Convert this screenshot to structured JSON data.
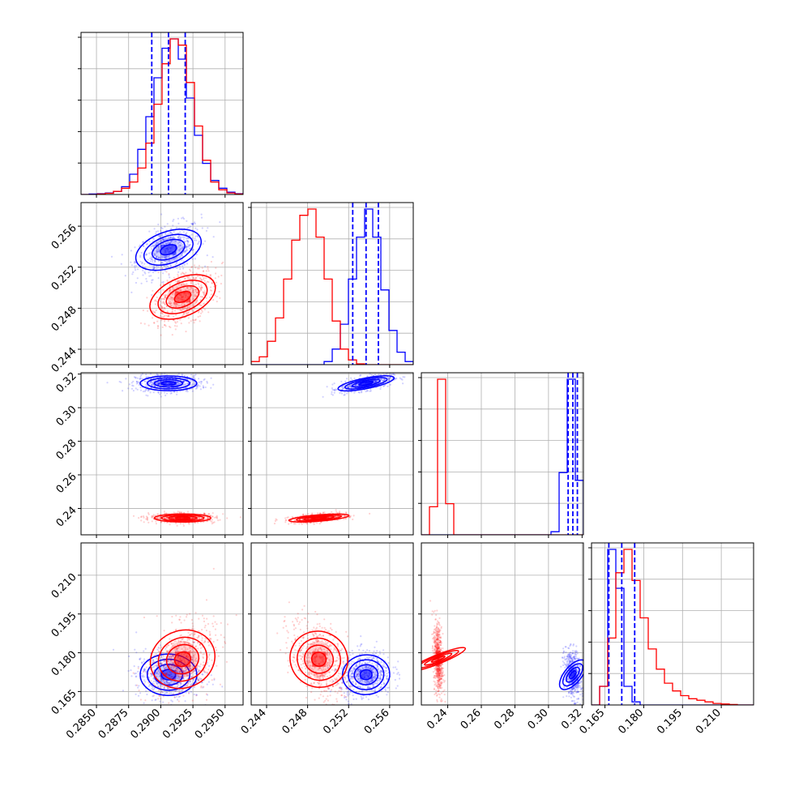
{
  "chart_data": {
    "type": "corner",
    "title": "",
    "parameters": [
      "",
      "",
      "",
      ""
    ],
    "colors": {
      "series_a": "#0000ff",
      "series_b": "#ff0000"
    },
    "grid": true,
    "ranges": [
      [
        0.2838,
        0.2964
      ],
      [
        0.2425,
        0.2583
      ],
      [
        0.2243,
        0.3208
      ],
      [
        0.1598,
        0.2225
      ]
    ],
    "tick_labels": [
      [
        "0.2850",
        "0.2875",
        "0.2900",
        "0.2925",
        "0.2950"
      ],
      [
        "0.244",
        "0.248",
        "0.252",
        "0.256"
      ],
      [
        "0.24",
        "0.26",
        "0.28",
        "0.30",
        "0.32"
      ],
      [
        "0.165",
        "0.180",
        "0.195",
        "0.210"
      ]
    ],
    "series": [
      {
        "color": "#0000ff",
        "means": [
          0.2906,
          0.2537,
          0.3145,
          0.1715
        ],
        "sigmas": [
          0.0011,
          0.0011,
          0.0022,
          0.004
        ],
        "correlations": [
          [
            0,
            1,
            0.45
          ],
          [
            0,
            2,
            0.0
          ],
          [
            1,
            2,
            0.6
          ],
          [
            0,
            3,
            0.0
          ],
          [
            1,
            3,
            0.1
          ],
          [
            2,
            3,
            -0.3
          ]
        ],
        "quantiles": [
          [
            0.2893,
            0.2906,
            0.2919
          ],
          [
            0.2524,
            0.2537,
            0.2549
          ],
          [
            0.3117,
            0.3145,
            0.3172
          ],
          [
            0.1665,
            0.1715,
            0.1765
          ]
        ],
        "hist": [
          [
            0,
            0.003,
            0.005,
            0.01,
            0.02,
            0.05,
            0.13,
            0.29,
            0.5,
            0.75,
            0.94,
            1.0,
            0.87,
            0.62,
            0.38,
            0.2,
            0.09,
            0.04,
            0.015,
            0.005
          ],
          [
            0,
            0,
            0,
            0,
            0,
            0,
            0,
            0,
            0,
            0.02,
            0.1,
            0.26,
            0.55,
            0.82,
            1.0,
            0.82,
            0.48,
            0.22,
            0.08,
            0.02
          ],
          [
            0,
            0,
            0,
            0,
            0,
            0,
            0,
            0,
            0,
            0,
            0,
            0,
            0,
            0,
            0,
            0,
            0.02,
            0.4,
            1.0,
            0.35
          ],
          [
            0,
            0.12,
            1.0,
            0.75,
            0.12,
            0.02,
            0,
            0,
            0,
            0,
            0,
            0,
            0,
            0,
            0,
            0,
            0,
            0,
            0,
            0
          ]
        ]
      },
      {
        "color": "#ff0000",
        "means": [
          0.2917,
          0.2491,
          0.2343,
          0.1775
        ],
        "sigmas": [
          0.0011,
          0.0012,
          0.0012,
          0.0065
        ],
        "correlations": [
          [
            0,
            1,
            0.5
          ],
          [
            0,
            2,
            0.0
          ],
          [
            1,
            2,
            0.5
          ],
          [
            0,
            3,
            0.35
          ],
          [
            1,
            3,
            -0.4
          ],
          [
            2,
            3,
            -0.3
          ]
        ],
        "quantiles": [
          [
            0.2905,
            0.2917,
            0.2929
          ],
          [
            0.2479,
            0.2491,
            0.2503
          ],
          [
            0.2331,
            0.2343,
            0.2355
          ],
          [
            0.1715,
            0.1775,
            0.1845
          ]
        ],
        "hist": [
          [
            0,
            0,
            0.003,
            0.008,
            0.02,
            0.04,
            0.08,
            0.17,
            0.33,
            0.58,
            0.84,
            1.0,
            0.96,
            0.72,
            0.44,
            0.22,
            0.08,
            0.03,
            0.01,
            0.003
          ],
          [
            0.02,
            0.05,
            0.15,
            0.3,
            0.55,
            0.8,
            0.96,
            1.0,
            0.82,
            0.55,
            0.28,
            0.1,
            0.03,
            0.005,
            0,
            0,
            0,
            0,
            0,
            0
          ],
          [
            0,
            0.18,
            1.0,
            0.2,
            0,
            0,
            0,
            0,
            0,
            0,
            0,
            0,
            0,
            0,
            0,
            0,
            0,
            0,
            0,
            0
          ],
          [
            0,
            0.12,
            0.43,
            0.85,
            1.0,
            0.8,
            0.56,
            0.36,
            0.23,
            0.14,
            0.09,
            0.06,
            0.04,
            0.03,
            0.02,
            0.01,
            0.006,
            0.003,
            0,
            0
          ]
        ]
      }
    ]
  }
}
